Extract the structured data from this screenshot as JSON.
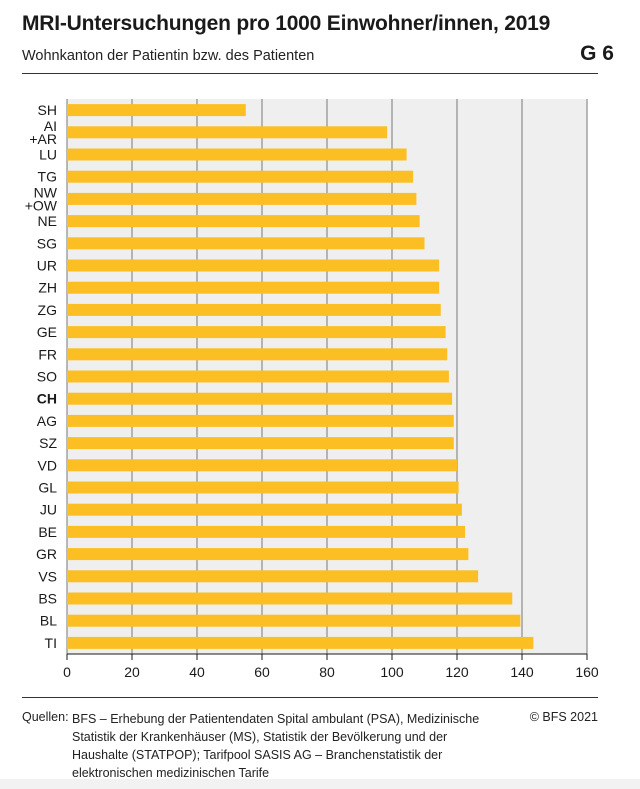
{
  "header": {
    "title": "MRI-Untersuchungen pro 1000 Einwohner/innen, 2019",
    "subtitle": "Wohnkanton der Patientin bzw. des Patienten",
    "graph_number": "G 6"
  },
  "colors": {
    "bar": "#fbbf24",
    "plot_bg": "#efefef",
    "grid": "#8c8c8c"
  },
  "chart_data": {
    "type": "bar",
    "orientation": "horizontal",
    "title": "MRI-Untersuchungen pro 1000 Einwohner/innen, 2019",
    "xlabel": "",
    "ylabel": "",
    "xlim": [
      0,
      160
    ],
    "x_ticks": [
      0,
      20,
      40,
      60,
      80,
      100,
      120,
      140,
      160
    ],
    "grid": true,
    "categories": [
      {
        "label": [
          "SH"
        ],
        "value": 55,
        "bold": false
      },
      {
        "label": [
          "AI",
          "+AR"
        ],
        "value": 98.5,
        "bold": false
      },
      {
        "label": [
          "LU"
        ],
        "value": 104.5,
        "bold": false
      },
      {
        "label": [
          "TG"
        ],
        "value": 106.5,
        "bold": false
      },
      {
        "label": [
          "NW",
          "+OW"
        ],
        "value": 107.5,
        "bold": false
      },
      {
        "label": [
          "NE"
        ],
        "value": 108.5,
        "bold": false
      },
      {
        "label": [
          "SG"
        ],
        "value": 110,
        "bold": false
      },
      {
        "label": [
          "UR"
        ],
        "value": 114.5,
        "bold": false
      },
      {
        "label": [
          "ZH"
        ],
        "value": 114.5,
        "bold": false
      },
      {
        "label": [
          "ZG"
        ],
        "value": 115,
        "bold": false
      },
      {
        "label": [
          "GE"
        ],
        "value": 116.5,
        "bold": false
      },
      {
        "label": [
          "FR"
        ],
        "value": 117,
        "bold": false
      },
      {
        "label": [
          "SO"
        ],
        "value": 117.5,
        "bold": false
      },
      {
        "label": [
          "CH"
        ],
        "value": 118.5,
        "bold": true
      },
      {
        "label": [
          "AG"
        ],
        "value": 119,
        "bold": false
      },
      {
        "label": [
          "SZ"
        ],
        "value": 119,
        "bold": false
      },
      {
        "label": [
          "VD"
        ],
        "value": 120,
        "bold": false
      },
      {
        "label": [
          "GL"
        ],
        "value": 120.5,
        "bold": false
      },
      {
        "label": [
          "JU"
        ],
        "value": 121.5,
        "bold": false
      },
      {
        "label": [
          "BE"
        ],
        "value": 122.5,
        "bold": false
      },
      {
        "label": [
          "GR"
        ],
        "value": 123.5,
        "bold": false
      },
      {
        "label": [
          "VS"
        ],
        "value": 126.5,
        "bold": false
      },
      {
        "label": [
          "BS"
        ],
        "value": 137,
        "bold": false
      },
      {
        "label": [
          "BL"
        ],
        "value": 139.5,
        "bold": false
      },
      {
        "label": [
          "TI"
        ],
        "value": 143.5,
        "bold": false
      }
    ]
  },
  "footer": {
    "sources_label": "Quellen:",
    "sources_text": "BFS – Erhebung der Patientendaten Spital ambulant (PSA), Medizinische Statistik der Krankenhäuser (MS), Statistik der Bevölkerung und der Haushalte (STATPOP); Tarifpool SASIS AG – Branchenstatistik der elektronischen medizinischen Tarife",
    "copyright": "© BFS 2021"
  }
}
